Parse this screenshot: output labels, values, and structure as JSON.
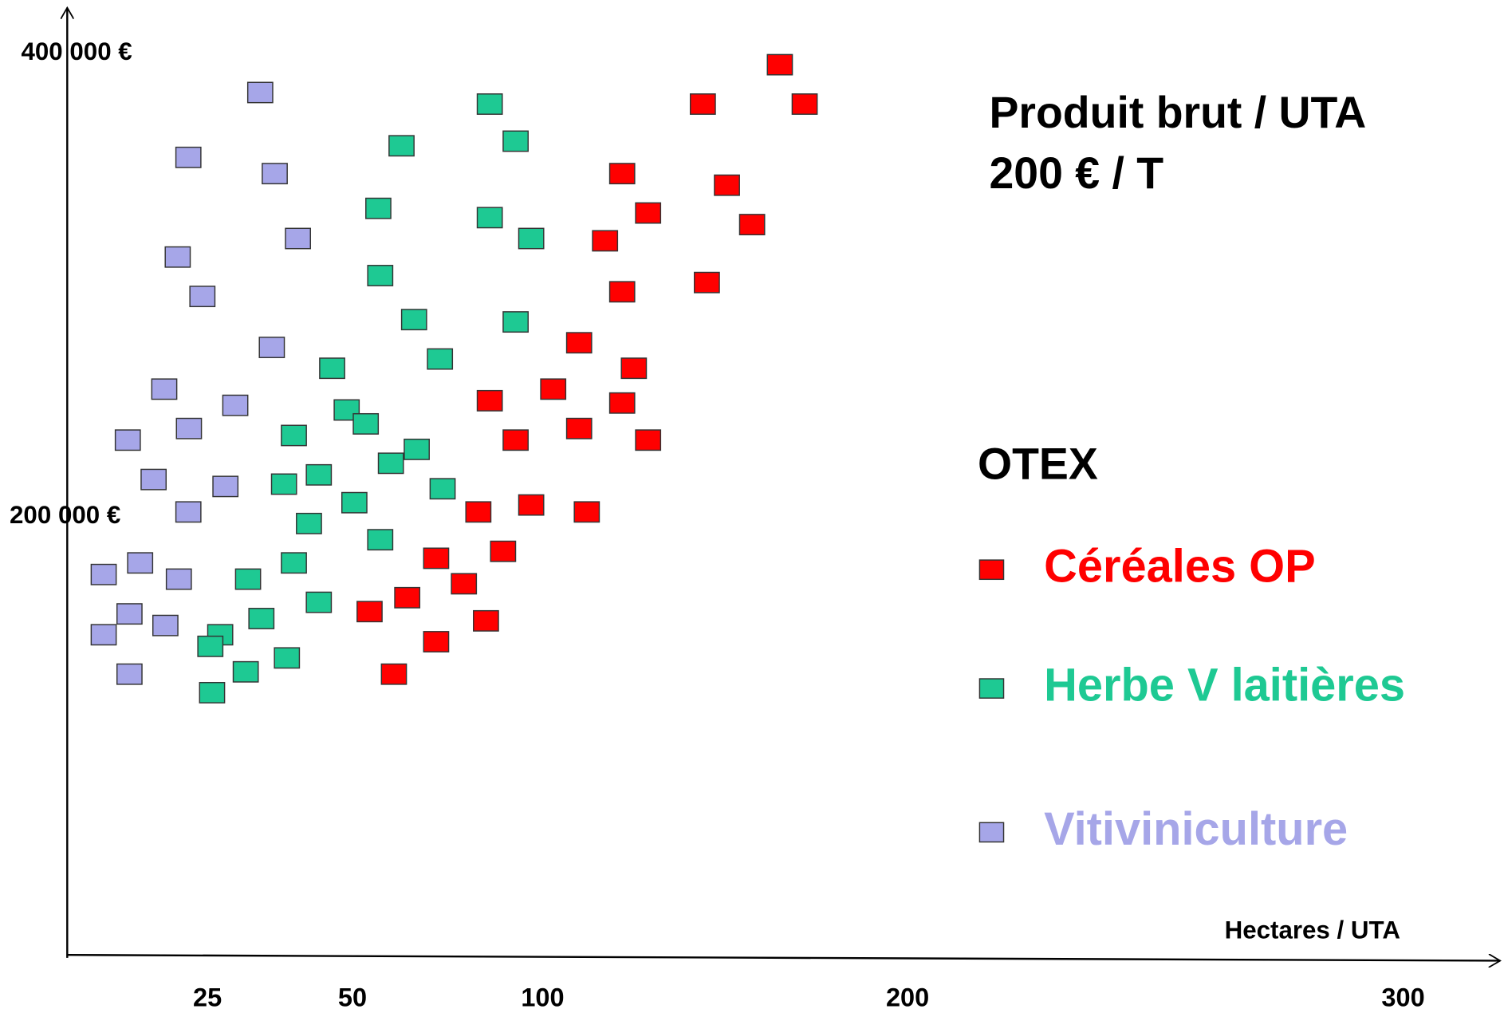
{
  "chart_data": {
    "type": "scatter",
    "title": "Produit brut / UTA",
    "subtitle": "200 € / T",
    "x_label": "Hectares / UTA",
    "legend_title": "OTEX",
    "xlim": [
      0,
      320
    ],
    "xticks": [
      25,
      50,
      100,
      200,
      300
    ],
    "ylim": [
      10000,
      420000
    ],
    "yticks": [
      {
        "value": 200000,
        "label": "200 000 €"
      },
      {
        "value": 400000,
        "label": "400 000 €"
      }
    ],
    "grid": false,
    "series": [
      {
        "name": "Céréales OP",
        "color": "#ff0000",
        "x": [
          165.0,
          143.9,
          171.8,
          121.8,
          150.5,
          128.9,
          157.4,
          117.1,
          145.0,
          121.8,
          110.0,
          125.0,
          102.9,
          86.1,
          121.8,
          110.0,
          92.9,
          128.9,
          97.0,
          83.1,
          112.1,
          72.0,
          89.6,
          79.3,
          54.5,
          64.4,
          85.1,
          72.0,
          60.9
        ],
        "values": [
          395000,
          378000,
          378000,
          348000,
          343000,
          331000,
          326000,
          319000,
          301000,
          297000,
          275000,
          264000,
          255000,
          250000,
          249000,
          238000,
          233000,
          233000,
          205000,
          202000,
          202000,
          182000,
          185000,
          171000,
          159000,
          165000,
          155000,
          146000,
          132000
        ]
      },
      {
        "name": "Herbe V laitières",
        "color": "#1ec993",
        "x": [
          86.1,
          92.9,
          62.9,
          56.8,
          86.1,
          97.0,
          57.3,
          66.2,
          92.9,
          73.0,
          46.5,
          49.0,
          53.5,
          39.9,
          66.9,
          60.1,
          44.2,
          38.2,
          73.7,
          50.5,
          42.5,
          57.3,
          39.9,
          32.0,
          44.2,
          34.3,
          27.2,
          25.5,
          38.7,
          31.6,
          25.8
        ],
        "values": [
          378000,
          362000,
          360000,
          333000,
          329000,
          320000,
          304000,
          285000,
          284000,
          268000,
          264000,
          246000,
          240000,
          235000,
          229000,
          223000,
          218000,
          214000,
          212000,
          206000,
          197000,
          190000,
          180000,
          173000,
          163000,
          156000,
          149000,
          144000,
          139000,
          133000,
          124000
        ]
      },
      {
        "name": "Vitiviniculture",
        "color": "#a6a6e8",
        "x": [
          34.1,
          21.6,
          36.6,
          40.6,
          19.7,
          24.1,
          36.1,
          17.3,
          29.8,
          21.7,
          10.8,
          15.4,
          28.1,
          21.6,
          6.5,
          13.0,
          19.9,
          11.1,
          17.5,
          6.5,
          11.1
        ],
        "values": [
          383000,
          355000,
          348000,
          320000,
          312000,
          295000,
          273000,
          255000,
          248000,
          238000,
          233000,
          216000,
          213000,
          202000,
          175000,
          180000,
          173000,
          158000,
          153000,
          149000,
          132000
        ]
      }
    ]
  }
}
